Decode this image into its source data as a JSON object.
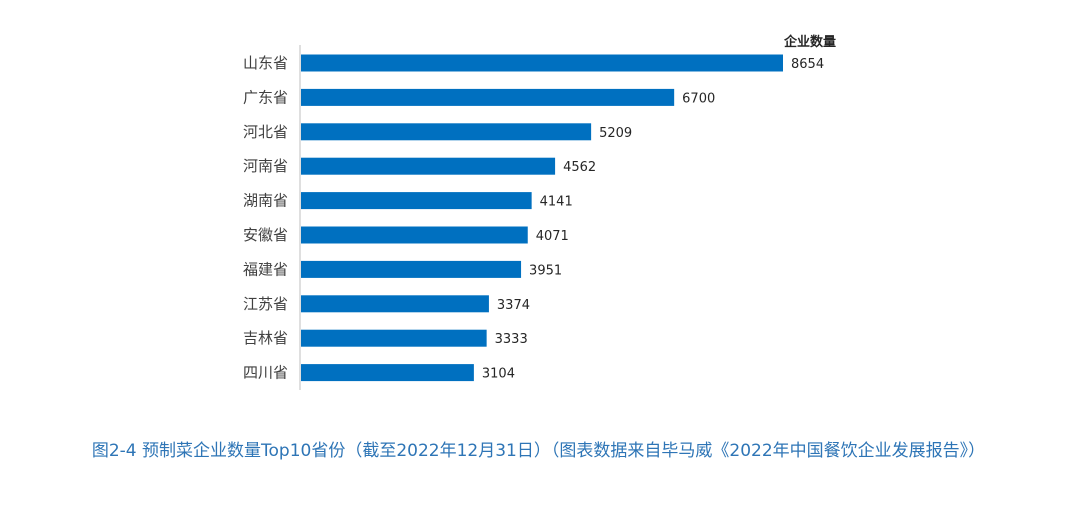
{
  "chart_data": {
    "type": "bar",
    "orientation": "horizontal",
    "series_label": "企业数量",
    "categories": [
      "山东省",
      "广东省",
      "河北省",
      "河南省",
      "湖南省",
      "安徽省",
      "福建省",
      "江苏省",
      "吉林省",
      "四川省"
    ],
    "values": [
      8654,
      6700,
      5209,
      4562,
      4141,
      4071,
      3951,
      3374,
      3333,
      3104
    ],
    "xlim": [
      0,
      8654
    ],
    "grid": false,
    "bar_color": "#0070c0"
  },
  "caption": "图2-4 预制菜企业数量Top10省份（截至2022年12月31日）（图表数据来自毕马威《2022年中国餐饮企业发展报告》）"
}
